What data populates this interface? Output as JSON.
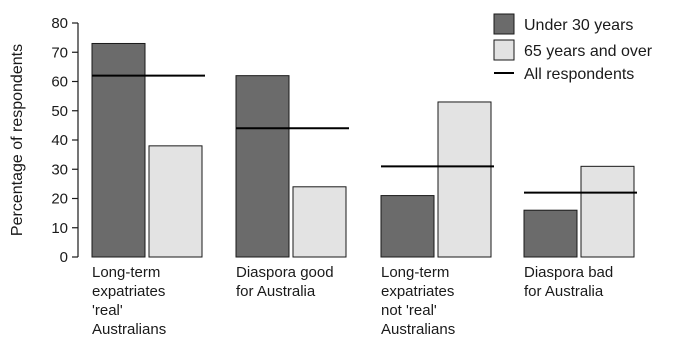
{
  "chart_data": {
    "type": "bar",
    "title": "",
    "xlabel": "",
    "ylabel": "Percentage of respondents",
    "ylim": [
      0,
      80
    ],
    "yticks": [
      0,
      10,
      20,
      30,
      40,
      50,
      60,
      70,
      80
    ],
    "grid": false,
    "legend_position": "top-right",
    "categories": [
      [
        "Long-term",
        "expatriates",
        "'real'",
        "Australians"
      ],
      [
        "Diaspora good",
        "for Australia"
      ],
      [
        "Long-term",
        "expatriates",
        "not 'real'",
        "Australians"
      ],
      [
        "Diaspora bad",
        "for Australia"
      ]
    ],
    "series": [
      {
        "name": "Under 30 years",
        "values": [
          73,
          62,
          21,
          16
        ],
        "color": "#6b6b6b"
      },
      {
        "name": "65 years and over",
        "values": [
          38,
          24,
          53,
          31
        ],
        "color": "#e3e3e3"
      }
    ],
    "reference": {
      "name": "All respondents",
      "values": [
        62,
        44,
        31,
        22
      ],
      "color": "#000000"
    }
  }
}
